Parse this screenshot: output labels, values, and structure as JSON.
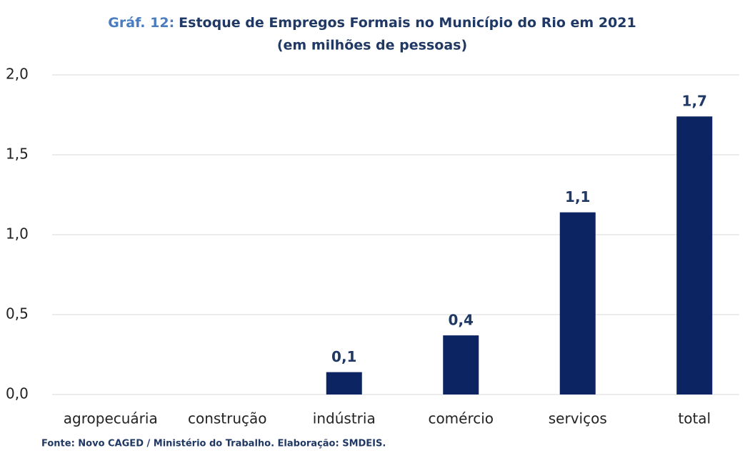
{
  "chart_data": {
    "type": "bar",
    "title_number": "Gráf. 12:",
    "title": "Estoque  de Empregos Formais no Município do Rio em 2021",
    "subtitle": "(em milhões de pessoas)",
    "categories": [
      "agropecuária",
      "construção",
      "indústria",
      "comércio",
      "serviços",
      "total"
    ],
    "values": [
      0,
      0,
      0.14,
      0.37,
      1.14,
      1.74
    ],
    "value_labels": [
      null,
      null,
      "0,1",
      "0,4",
      "1,1",
      "1,7"
    ],
    "color": "#0c2461",
    "ylim": [
      0,
      2
    ],
    "yticks": [
      {
        "value": 0,
        "label": "0,0"
      },
      {
        "value": 0.5,
        "label": "0,5"
      },
      {
        "value": 1,
        "label": "1,0"
      },
      {
        "value": 1.5,
        "label": "1,5"
      },
      {
        "value": 2,
        "label": "2,0"
      }
    ],
    "grid": true,
    "source": "Fonte: Novo CAGED / Ministério do Trabalho. Elaboração: SMDEIS."
  }
}
